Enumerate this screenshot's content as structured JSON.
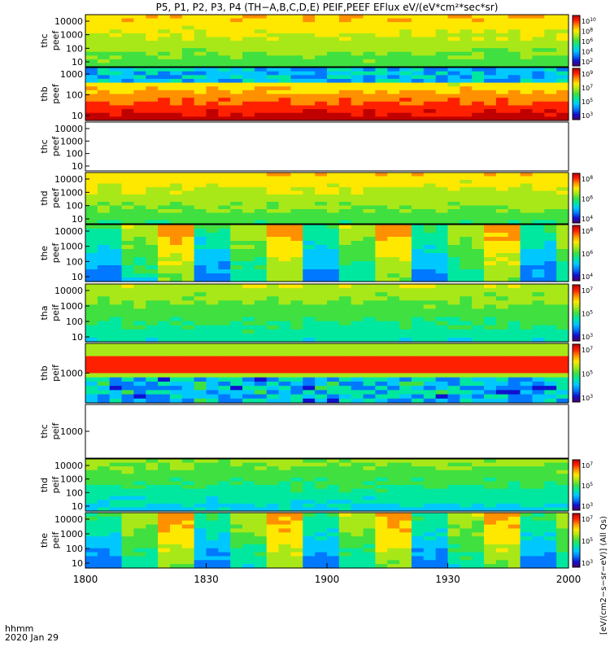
{
  "title": "P5, P1, P2, P3, P4 (TH−A,B,C,D,E) PEIF,PEEF EFlux eV/(eV*cm²*sec*sr)",
  "time_labels": [
    "1800",
    "1830",
    "1900",
    "1930",
    "2000"
  ],
  "footer_unit": "hhmm",
  "footer_date": "2020 Jan 29",
  "colorbar_unit_label": "[eV/(cm2−s−sr−eV)] (All Qs)",
  "colormap": [
    "#4b006e",
    "#1010d0",
    "#0078ff",
    "#00c8ff",
    "#00e8a0",
    "#40e040",
    "#a8e818",
    "#ffe800",
    "#ff9000",
    "#ff2000",
    "#c00000"
  ],
  "chart_data": {
    "type": "heatmap",
    "x_range": [
      "18:00",
      "20:00"
    ],
    "panels": [
      {
        "name": "thc peef",
        "yticks": [
          "10000",
          "1000",
          "100",
          "10"
        ],
        "colorbar": [
          "10^10",
          "10^8",
          "10^6",
          "10^4",
          "10^2"
        ],
        "level": 0.62
      },
      {
        "name": "thb peef",
        "yticks": [
          "1000",
          "100",
          "10"
        ],
        "colorbar": [
          "10^9",
          "10^7",
          "10^5",
          "10^3"
        ],
        "level": 0.7
      },
      {
        "name": "thc peef",
        "yticks": [
          "10000",
          "1000",
          "100",
          "10"
        ],
        "colorbar": [],
        "level": null
      },
      {
        "name": "thd peef",
        "yticks": [
          "10000",
          "1000",
          "100",
          "10"
        ],
        "colorbar": [
          "10^8",
          "10^6",
          "10^4"
        ],
        "level": 0.6
      },
      {
        "name": "the peef",
        "yticks": [
          "10000",
          "1000",
          "100",
          "10"
        ],
        "colorbar": [
          "10^8",
          "10^6",
          "10^4"
        ],
        "level": 0.5
      },
      {
        "name": "tha peif",
        "yticks": [
          "10000",
          "1000",
          "100",
          "10"
        ],
        "colorbar": [
          "10^7",
          "10^5",
          "10^3"
        ],
        "level": 0.5
      },
      {
        "name": "thb peif",
        "yticks": [
          "1000"
        ],
        "colorbar": [
          "10^7",
          "10^5",
          "10^3"
        ],
        "level": 0.6
      },
      {
        "name": "thc peif",
        "yticks": [
          "1000"
        ],
        "colorbar": [],
        "level": null
      },
      {
        "name": "thd peif",
        "yticks": [
          "10000",
          "1000",
          "100",
          "10"
        ],
        "colorbar": [
          "10^7",
          "10^5",
          "10^3"
        ],
        "level": 0.45
      },
      {
        "name": "the peif",
        "yticks": [
          "10000",
          "1000",
          "100",
          "10"
        ],
        "colorbar": [
          "10^7",
          "10^5",
          "10^3"
        ],
        "level": 0.5
      }
    ]
  }
}
